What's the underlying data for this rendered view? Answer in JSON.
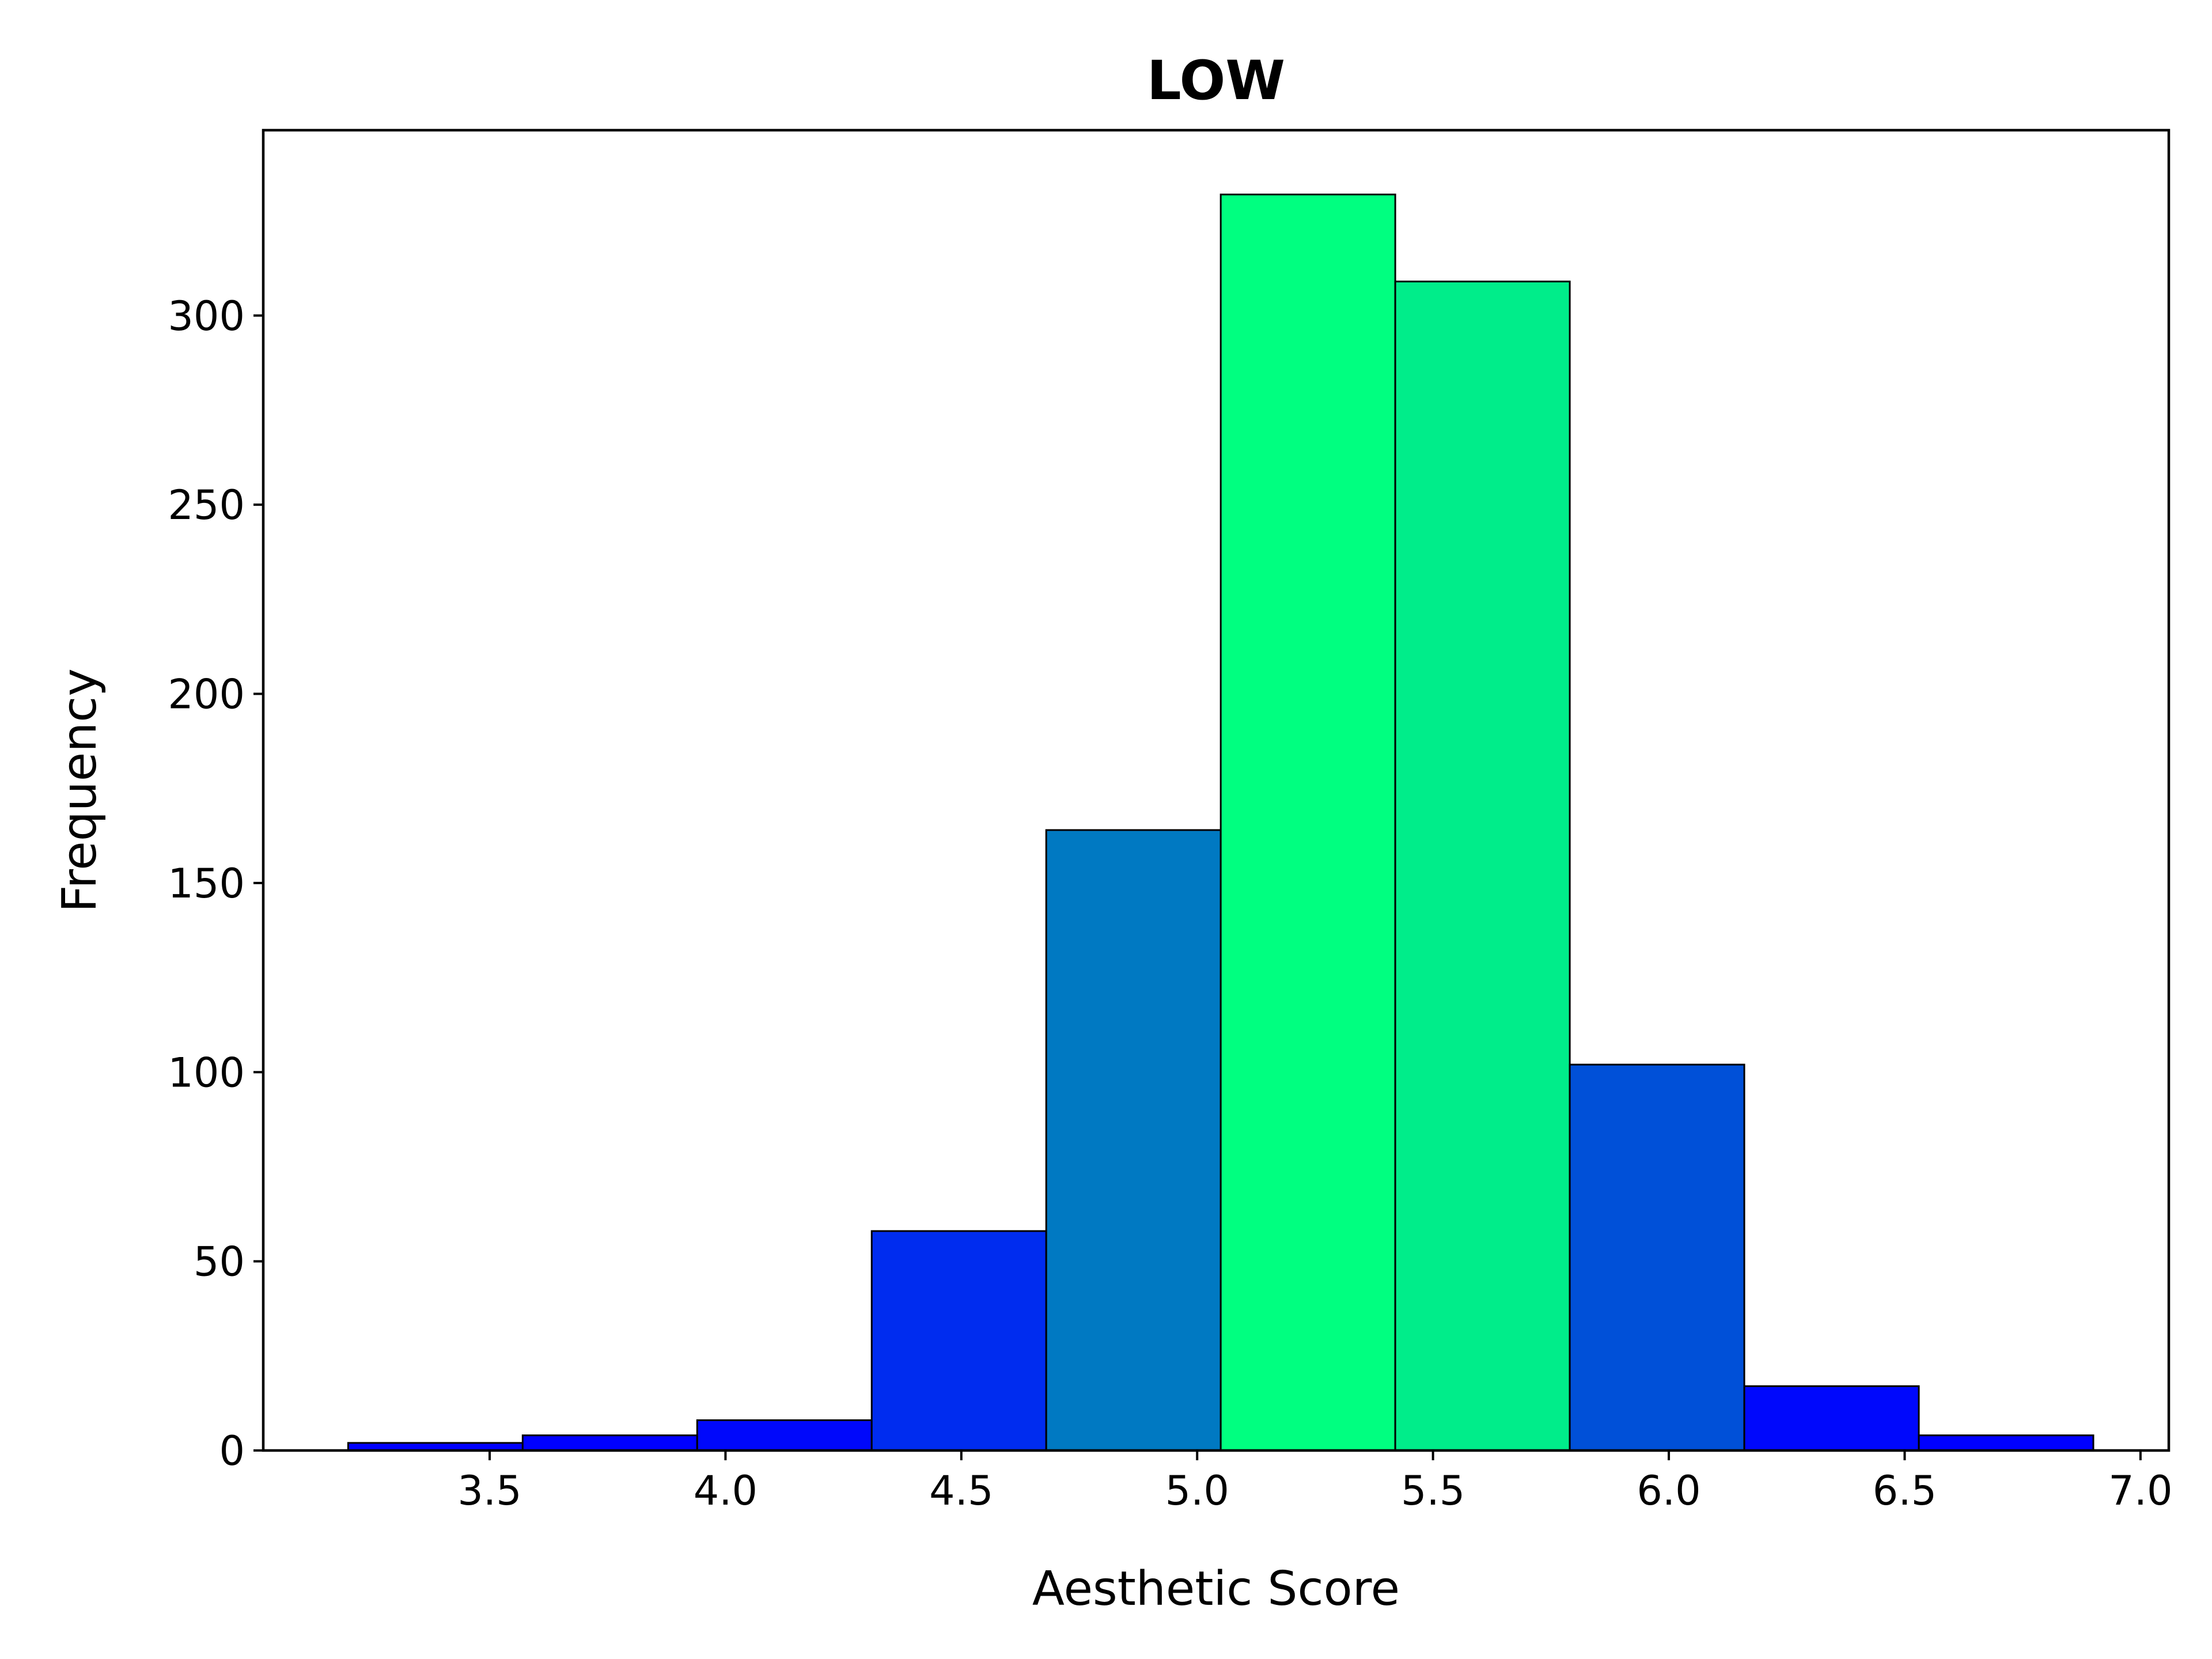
{
  "chart_data": {
    "type": "bar",
    "title": "LOW",
    "xlabel": "Aesthetic Score",
    "ylabel": "Frequency",
    "xlim": [
      3.02,
      7.06
    ],
    "ylim": [
      0,
      349
    ],
    "x_ticks": [
      "3.5",
      "4.0",
      "4.5",
      "5.0",
      "5.5",
      "6.0",
      "6.5",
      "7.0"
    ],
    "y_ticks": [
      "0",
      "50",
      "100",
      "150",
      "200",
      "250",
      "300"
    ],
    "bins": [
      {
        "start": 3.2,
        "end": 3.57,
        "value": 2,
        "color": "#0000ff"
      },
      {
        "start": 3.57,
        "end": 3.94,
        "value": 4,
        "color": "#0000ff"
      },
      {
        "start": 3.94,
        "end": 4.31,
        "value": 8,
        "color": "#0008fb"
      },
      {
        "start": 4.31,
        "end": 4.68,
        "value": 58,
        "color": "#002cef"
      },
      {
        "start": 4.68,
        "end": 5.05,
        "value": 164,
        "color": "#0079c2"
      },
      {
        "start": 5.05,
        "end": 5.42,
        "value": 332,
        "color": "#00ff80"
      },
      {
        "start": 5.42,
        "end": 5.79,
        "value": 309,
        "color": "#00ed8a"
      },
      {
        "start": 5.79,
        "end": 6.16,
        "value": 102,
        "color": "#0050d8"
      },
      {
        "start": 6.16,
        "end": 6.53,
        "value": 17,
        "color": "#0008fc"
      },
      {
        "start": 6.53,
        "end": 6.9,
        "value": 4,
        "color": "#0000ff"
      }
    ],
    "grid": false,
    "legend": "none"
  }
}
